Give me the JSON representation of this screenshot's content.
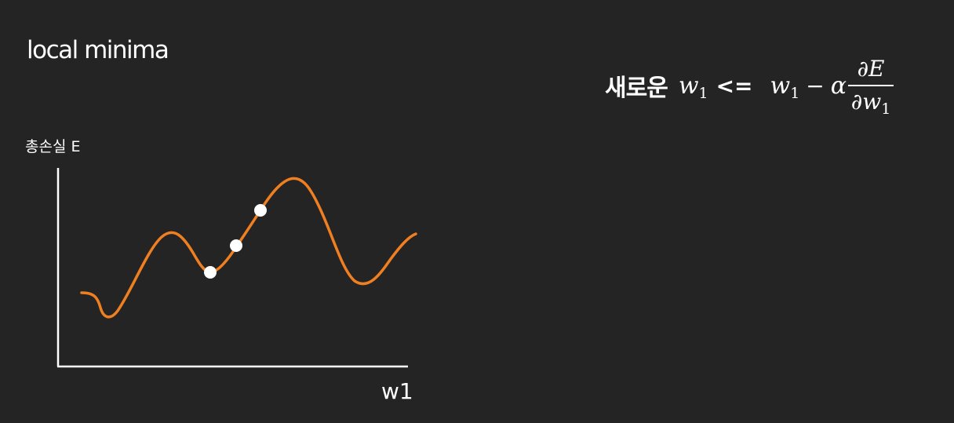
{
  "title": "local minima",
  "graph": {
    "ylabel": "총손실 E",
    "xlabel": "w1",
    "curve_color": "#f07f22",
    "point_color": "#ffffff",
    "axis_color": "#ffffff"
  },
  "formula": {
    "prefix": "새로운",
    "lhs_var": "w",
    "lhs_sub": "1",
    "operator": "<=",
    "rhs_var": "w",
    "rhs_sub": "1",
    "minus": "−",
    "alpha": "α",
    "frac_num": "∂E",
    "frac_den_var": "∂w",
    "frac_den_sub": "1"
  }
}
